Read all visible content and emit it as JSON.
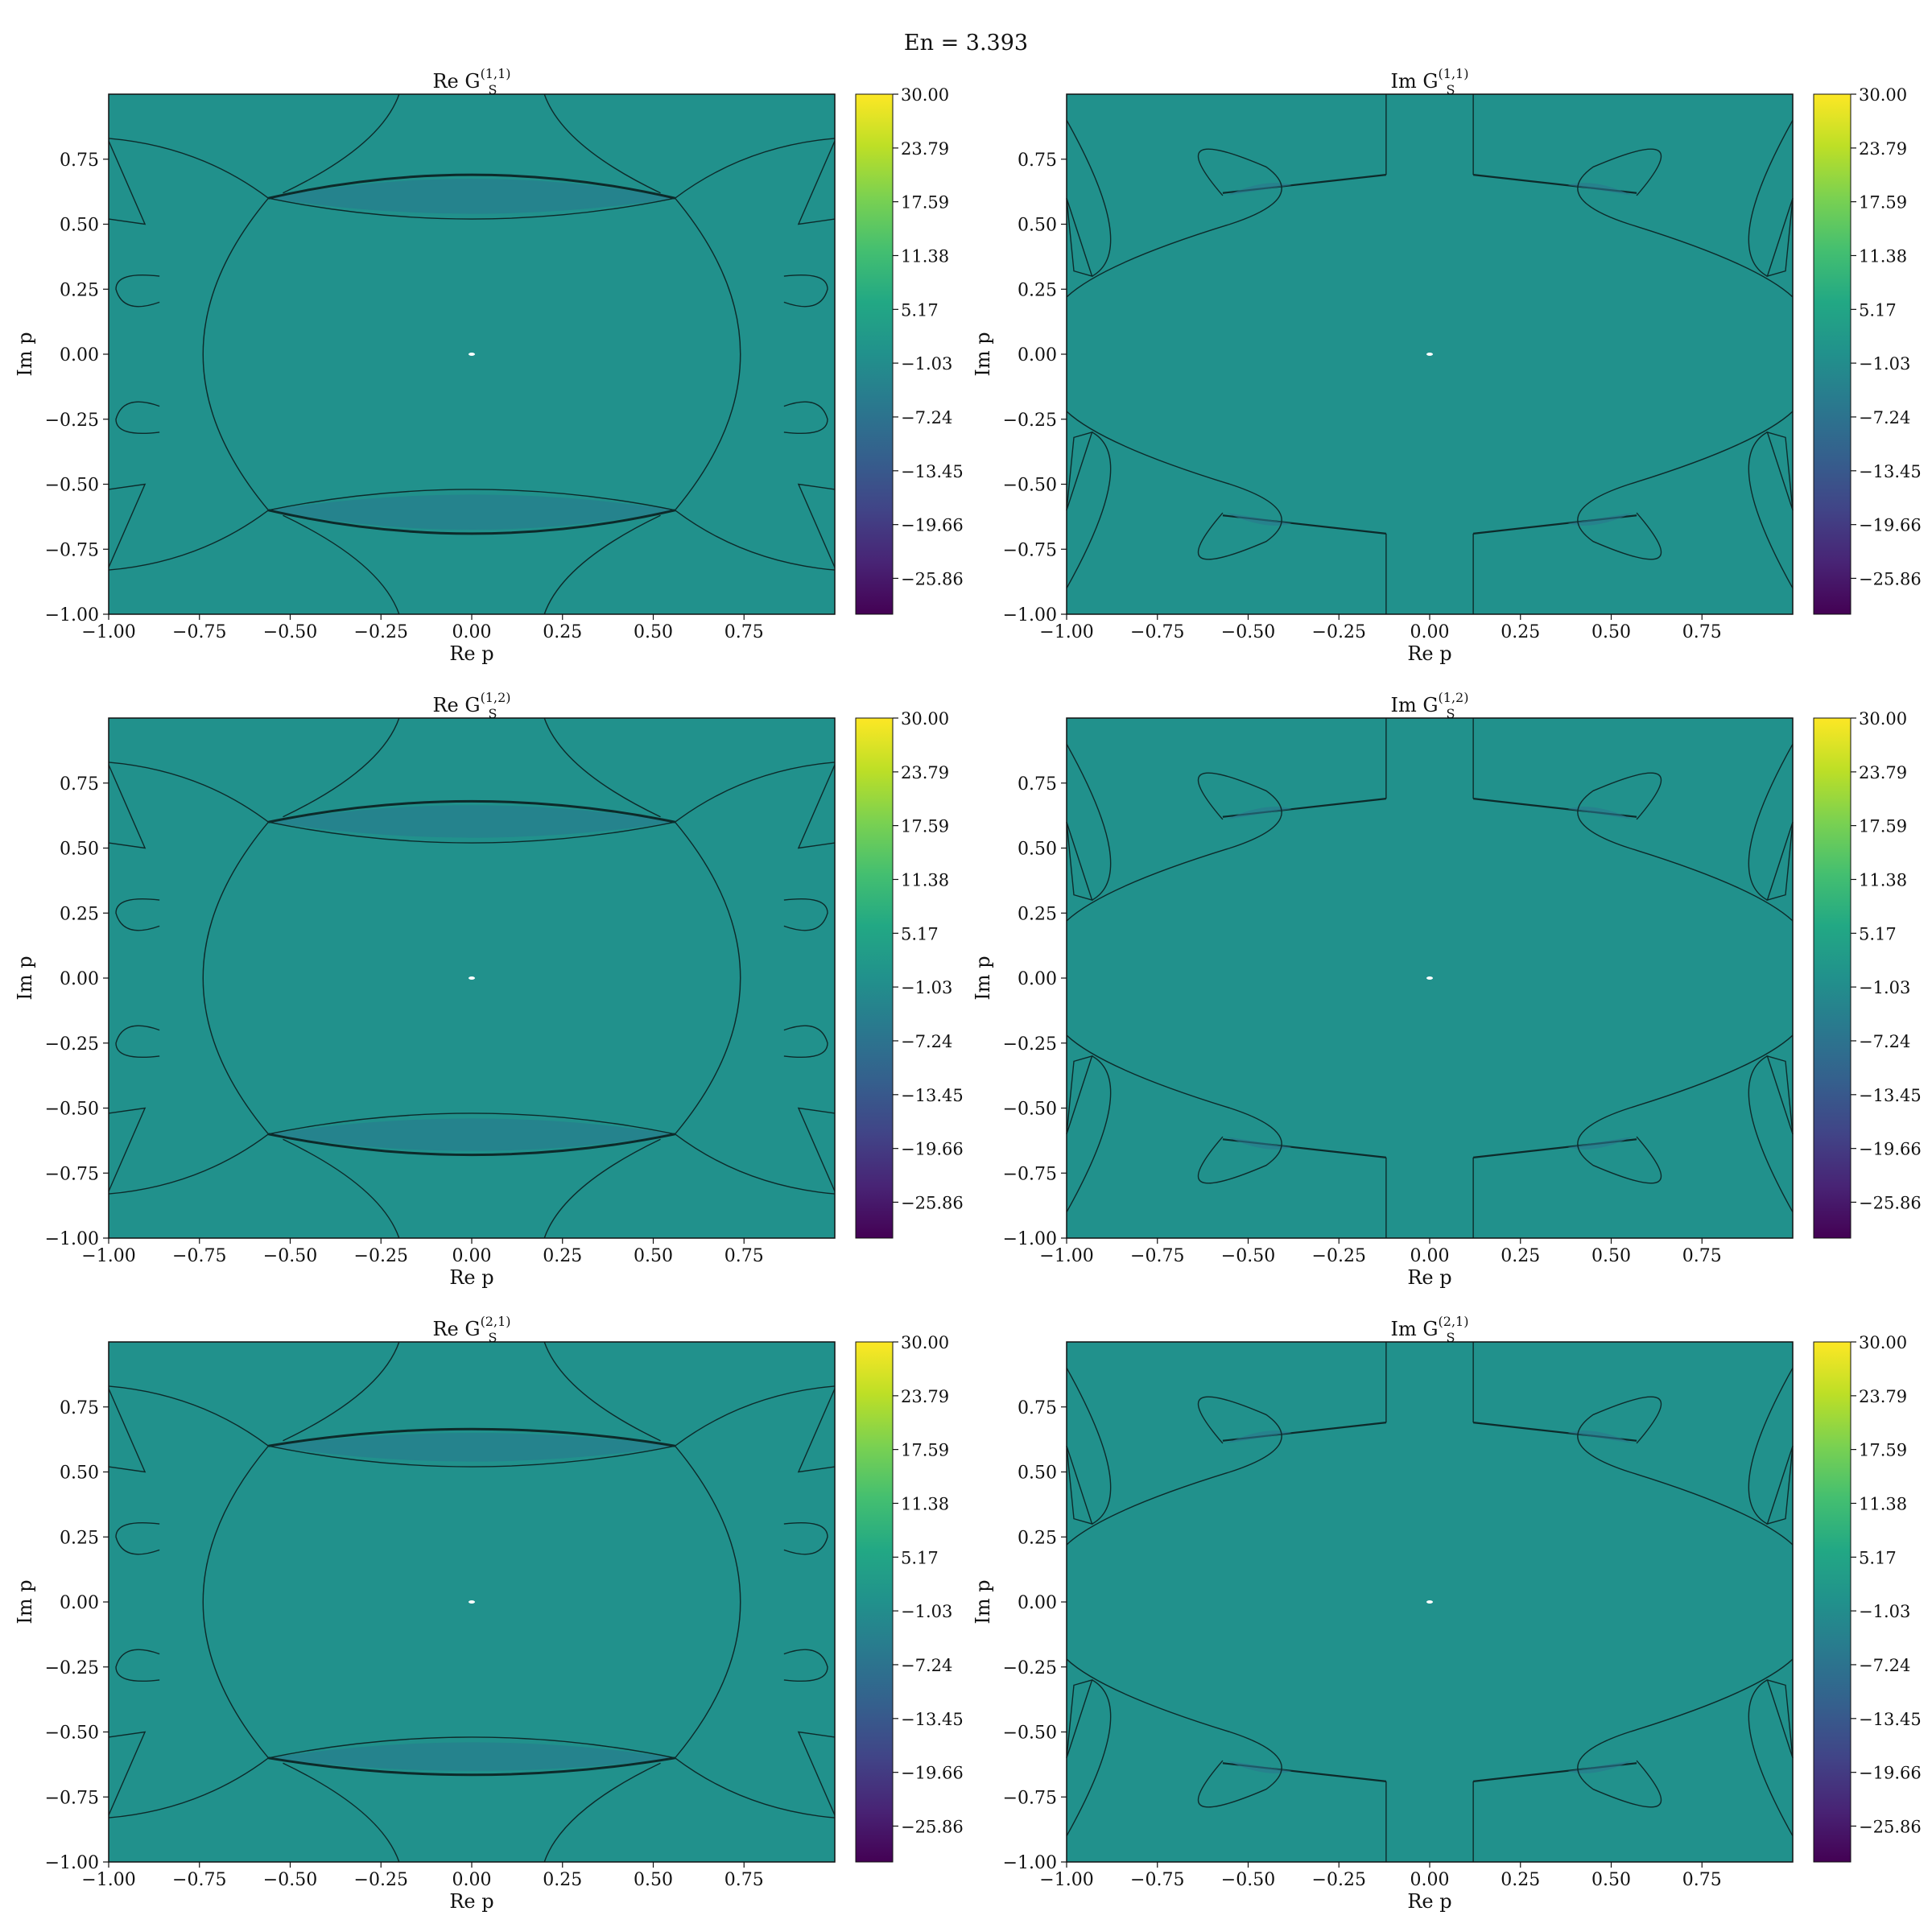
{
  "suptitle": "En = 3.393",
  "axis_labels": {
    "x": "Re p",
    "y": "Im p"
  },
  "colormap": [
    "#440154",
    "#482475",
    "#414487",
    "#355f8d",
    "#2a788e",
    "#21918c",
    "#22a884",
    "#44bf70",
    "#7ad151",
    "#bddf26",
    "#fde725"
  ],
  "field_color": "#21918c",
  "blob_color": "#2a788e",
  "chart_data": [
    {
      "type": "heatmap",
      "title": "Re G_S^(1,1)",
      "title_base": "Re G",
      "title_sub": "S",
      "title_sup": "(1,1)",
      "xlim": [
        -1.0,
        1.0
      ],
      "ylim": [
        -1.0,
        1.0
      ],
      "xticks": [
        -1.0,
        -0.75,
        -0.5,
        -0.25,
        0.0,
        0.25,
        0.5,
        0.75
      ],
      "xtick_labels": [
        "−1.00",
        "−0.75",
        "−0.50",
        "−0.25",
        "0.00",
        "0.25",
        "0.50",
        "0.75"
      ],
      "yticks": [
        -1.0,
        -0.75,
        -0.5,
        -0.25,
        0.0,
        0.25,
        0.5,
        0.75
      ],
      "ytick_labels": [
        "−1.00",
        "−0.75",
        "−0.50",
        "−0.25",
        "0.00",
        "0.25",
        "0.50",
        "0.75"
      ],
      "colorbar": {
        "range": [
          -30,
          30
        ],
        "ticks": [
          30.0,
          23.79,
          17.59,
          11.38,
          5.17,
          -1.03,
          -7.24,
          -13.45,
          -19.66,
          -25.86
        ],
        "tick_labels": [
          "30.00",
          "23.79",
          "17.59",
          "11.38",
          "5.17",
          "−1.03",
          "−7.24",
          "−13.45",
          "−19.66",
          "−25.86"
        ]
      }
    },
    {
      "type": "heatmap",
      "title": "Im G_S^(1,1)",
      "title_base": "Im G",
      "title_sub": "S",
      "title_sup": "(1,1)",
      "xlim": [
        -1.0,
        1.0
      ],
      "ylim": [
        -1.0,
        1.0
      ],
      "xticks": [
        -1.0,
        -0.75,
        -0.5,
        -0.25,
        0.0,
        0.25,
        0.5,
        0.75
      ],
      "xtick_labels": [
        "−1.00",
        "−0.75",
        "−0.50",
        "−0.25",
        "0.00",
        "0.25",
        "0.50",
        "0.75"
      ],
      "yticks": [
        -1.0,
        -0.75,
        -0.5,
        -0.25,
        0.0,
        0.25,
        0.5,
        0.75
      ],
      "ytick_labels": [
        "−1.00",
        "−0.75",
        "−0.50",
        "−0.25",
        "0.00",
        "0.25",
        "0.50",
        "0.75"
      ],
      "colorbar": {
        "range": [
          -30,
          30
        ],
        "ticks": [
          30.0,
          23.79,
          17.59,
          11.38,
          5.17,
          -1.03,
          -7.24,
          -13.45,
          -19.66,
          -25.86
        ],
        "tick_labels": [
          "30.00",
          "23.79",
          "17.59",
          "11.38",
          "5.17",
          "−1.03",
          "−7.24",
          "−13.45",
          "−19.66",
          "−25.86"
        ]
      }
    },
    {
      "type": "heatmap",
      "title": "Re G_S^(1,2)",
      "title_base": "Re G",
      "title_sub": "S",
      "title_sup": "(1,2)",
      "xlim": [
        -1.0,
        1.0
      ],
      "ylim": [
        -1.0,
        1.0
      ],
      "xticks": [
        -1.0,
        -0.75,
        -0.5,
        -0.25,
        0.0,
        0.25,
        0.5,
        0.75
      ],
      "xtick_labels": [
        "−1.00",
        "−0.75",
        "−0.50",
        "−0.25",
        "0.00",
        "0.25",
        "0.50",
        "0.75"
      ],
      "yticks": [
        -1.0,
        -0.75,
        -0.5,
        -0.25,
        0.0,
        0.25,
        0.5,
        0.75
      ],
      "ytick_labels": [
        "−1.00",
        "−0.75",
        "−0.50",
        "−0.25",
        "0.00",
        "0.25",
        "0.50",
        "0.75"
      ],
      "colorbar": {
        "range": [
          -30,
          30
        ],
        "ticks": [
          30.0,
          23.79,
          17.59,
          11.38,
          5.17,
          -1.03,
          -7.24,
          -13.45,
          -19.66,
          -25.86
        ],
        "tick_labels": [
          "30.00",
          "23.79",
          "17.59",
          "11.38",
          "5.17",
          "−1.03",
          "−7.24",
          "−13.45",
          "−19.66",
          "−25.86"
        ]
      }
    },
    {
      "type": "heatmap",
      "title": "Im G_S^(1,2)",
      "title_base": "Im G",
      "title_sub": "S",
      "title_sup": "(1,2)",
      "xlim": [
        -1.0,
        1.0
      ],
      "ylim": [
        -1.0,
        1.0
      ],
      "xticks": [
        -1.0,
        -0.75,
        -0.5,
        -0.25,
        0.0,
        0.25,
        0.5,
        0.75
      ],
      "xtick_labels": [
        "−1.00",
        "−0.75",
        "−0.50",
        "−0.25",
        "0.00",
        "0.25",
        "0.50",
        "0.75"
      ],
      "yticks": [
        -1.0,
        -0.75,
        -0.5,
        -0.25,
        0.0,
        0.25,
        0.5,
        0.75
      ],
      "ytick_labels": [
        "−1.00",
        "−0.75",
        "−0.50",
        "−0.25",
        "0.00",
        "0.25",
        "0.50",
        "0.75"
      ],
      "colorbar": {
        "range": [
          -30,
          30
        ],
        "ticks": [
          30.0,
          23.79,
          17.59,
          11.38,
          5.17,
          -1.03,
          -7.24,
          -13.45,
          -19.66,
          -25.86
        ],
        "tick_labels": [
          "30.00",
          "23.79",
          "17.59",
          "11.38",
          "5.17",
          "−1.03",
          "−7.24",
          "−13.45",
          "−19.66",
          "−25.86"
        ]
      }
    },
    {
      "type": "heatmap",
      "title": "Re G_S^(2,1)",
      "title_base": "Re G",
      "title_sub": "S",
      "title_sup": "(2,1)",
      "xlim": [
        -1.0,
        1.0
      ],
      "ylim": [
        -1.0,
        1.0
      ],
      "xticks": [
        -1.0,
        -0.75,
        -0.5,
        -0.25,
        0.0,
        0.25,
        0.5,
        0.75
      ],
      "xtick_labels": [
        "−1.00",
        "−0.75",
        "−0.50",
        "−0.25",
        "0.00",
        "0.25",
        "0.50",
        "0.75"
      ],
      "yticks": [
        -1.0,
        -0.75,
        -0.5,
        -0.25,
        0.0,
        0.25,
        0.5,
        0.75
      ],
      "ytick_labels": [
        "−1.00",
        "−0.75",
        "−0.50",
        "−0.25",
        "0.00",
        "0.25",
        "0.50",
        "0.75"
      ],
      "colorbar": {
        "range": [
          -30,
          30
        ],
        "ticks": [
          30.0,
          23.79,
          17.59,
          11.38,
          5.17,
          -1.03,
          -7.24,
          -13.45,
          -19.66,
          -25.86
        ],
        "tick_labels": [
          "30.00",
          "23.79",
          "17.59",
          "11.38",
          "5.17",
          "−1.03",
          "−7.24",
          "−13.45",
          "−19.66",
          "−25.86"
        ]
      }
    },
    {
      "type": "heatmap",
      "title": "Im G_S^(2,1)",
      "title_base": "Im G",
      "title_sub": "S",
      "title_sup": "(2,1)",
      "xlim": [
        -1.0,
        1.0
      ],
      "ylim": [
        -1.0,
        1.0
      ],
      "xticks": [
        -1.0,
        -0.75,
        -0.5,
        -0.25,
        0.0,
        0.25,
        0.5,
        0.75
      ],
      "xtick_labels": [
        "−1.00",
        "−0.75",
        "−0.50",
        "−0.25",
        "0.00",
        "0.25",
        "0.50",
        "0.75"
      ],
      "yticks": [
        -1.0,
        -0.75,
        -0.5,
        -0.25,
        0.0,
        0.25,
        0.5,
        0.75
      ],
      "ytick_labels": [
        "−1.00",
        "−0.75",
        "−0.50",
        "−0.25",
        "0.00",
        "0.25",
        "0.50",
        "0.75"
      ],
      "colorbar": {
        "range": [
          -30,
          30
        ],
        "ticks": [
          30.0,
          23.79,
          17.59,
          11.38,
          5.17,
          -1.03,
          -7.24,
          -13.45,
          -19.66,
          -25.86
        ],
        "tick_labels": [
          "30.00",
          "23.79",
          "17.59",
          "11.38",
          "5.17",
          "−1.03",
          "−7.24",
          "−13.45",
          "−19.66",
          "−25.86"
        ]
      }
    }
  ]
}
